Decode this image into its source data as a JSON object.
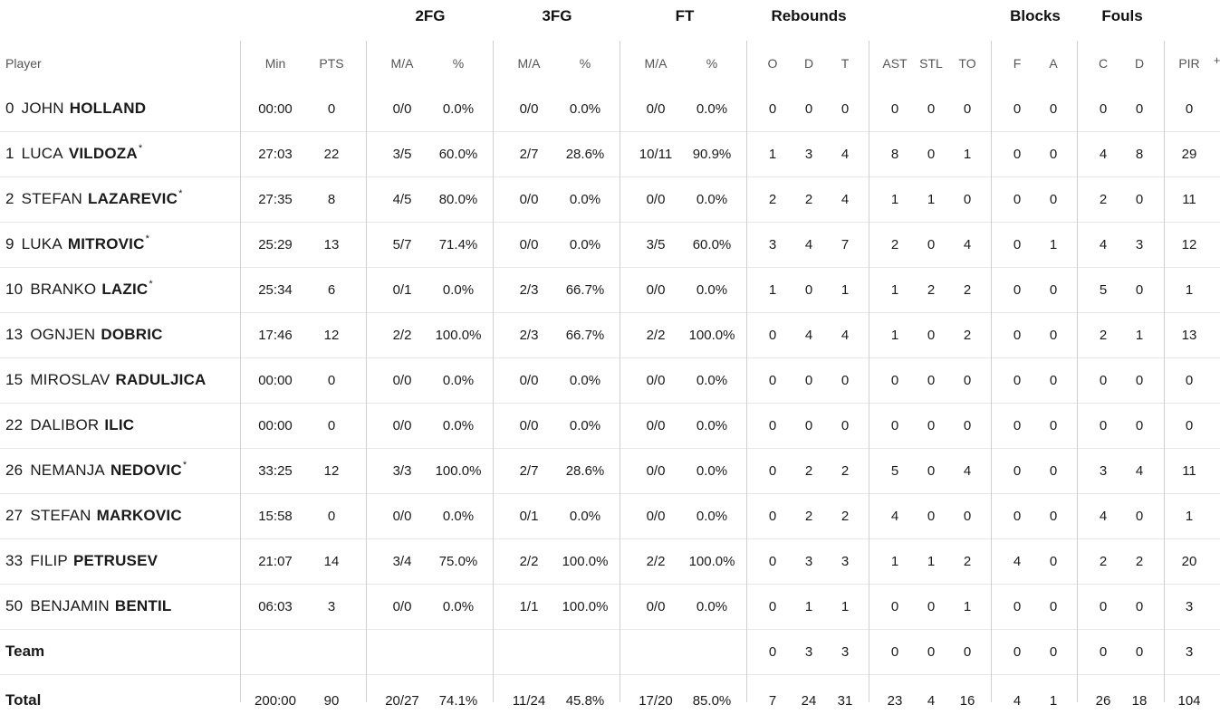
{
  "header": {
    "groups": [
      "2FG",
      "3FG",
      "FT",
      "Rebounds",
      "Blocks",
      "Fouls"
    ],
    "columns": [
      "Player",
      "Min",
      "PTS",
      "M/A",
      "%",
      "M/A",
      "%",
      "M/A",
      "%",
      "O",
      "D",
      "T",
      "AST",
      "STL",
      "TO",
      "F",
      "A",
      "C",
      "D",
      "PIR"
    ],
    "overflow_symbol": "+"
  },
  "players": [
    {
      "number": "0",
      "first": "JOHN",
      "last": "HOLLAND",
      "starter": false,
      "stats": [
        "00:00",
        "0",
        "0/0",
        "0.0%",
        "0/0",
        "0.0%",
        "0/0",
        "0.0%",
        "0",
        "0",
        "0",
        "0",
        "0",
        "0",
        "0",
        "0",
        "0",
        "0",
        "0"
      ]
    },
    {
      "number": "1",
      "first": "LUCA",
      "last": "VILDOZA",
      "starter": true,
      "stats": [
        "27:03",
        "22",
        "3/5",
        "60.0%",
        "2/7",
        "28.6%",
        "10/11",
        "90.9%",
        "1",
        "3",
        "4",
        "8",
        "0",
        "1",
        "0",
        "0",
        "4",
        "8",
        "29"
      ]
    },
    {
      "number": "2",
      "first": "STEFAN",
      "last": "LAZAREVIC",
      "starter": true,
      "stats": [
        "27:35",
        "8",
        "4/5",
        "80.0%",
        "0/0",
        "0.0%",
        "0/0",
        "0.0%",
        "2",
        "2",
        "4",
        "1",
        "1",
        "0",
        "0",
        "0",
        "2",
        "0",
        "11"
      ]
    },
    {
      "number": "9",
      "first": "LUKA",
      "last": "MITROVIC",
      "starter": true,
      "stats": [
        "25:29",
        "13",
        "5/7",
        "71.4%",
        "0/0",
        "0.0%",
        "3/5",
        "60.0%",
        "3",
        "4",
        "7",
        "2",
        "0",
        "4",
        "0",
        "1",
        "4",
        "3",
        "12"
      ]
    },
    {
      "number": "10",
      "first": "BRANKO",
      "last": "LAZIC",
      "starter": true,
      "stats": [
        "25:34",
        "6",
        "0/1",
        "0.0%",
        "2/3",
        "66.7%",
        "0/0",
        "0.0%",
        "1",
        "0",
        "1",
        "1",
        "2",
        "2",
        "0",
        "0",
        "5",
        "0",
        "1"
      ]
    },
    {
      "number": "13",
      "first": "OGNJEN",
      "last": "DOBRIC",
      "starter": false,
      "stats": [
        "17:46",
        "12",
        "2/2",
        "100.0%",
        "2/3",
        "66.7%",
        "2/2",
        "100.0%",
        "0",
        "4",
        "4",
        "1",
        "0",
        "2",
        "0",
        "0",
        "2",
        "1",
        "13"
      ]
    },
    {
      "number": "15",
      "first": "MIROSLAV",
      "last": "RADULJICA",
      "starter": false,
      "stats": [
        "00:00",
        "0",
        "0/0",
        "0.0%",
        "0/0",
        "0.0%",
        "0/0",
        "0.0%",
        "0",
        "0",
        "0",
        "0",
        "0",
        "0",
        "0",
        "0",
        "0",
        "0",
        "0"
      ]
    },
    {
      "number": "22",
      "first": "DALIBOR",
      "last": "ILIC",
      "starter": false,
      "stats": [
        "00:00",
        "0",
        "0/0",
        "0.0%",
        "0/0",
        "0.0%",
        "0/0",
        "0.0%",
        "0",
        "0",
        "0",
        "0",
        "0",
        "0",
        "0",
        "0",
        "0",
        "0",
        "0"
      ]
    },
    {
      "number": "26",
      "first": "NEMANJA",
      "last": "NEDOVIC",
      "starter": true,
      "stats": [
        "33:25",
        "12",
        "3/3",
        "100.0%",
        "2/7",
        "28.6%",
        "0/0",
        "0.0%",
        "0",
        "2",
        "2",
        "5",
        "0",
        "4",
        "0",
        "0",
        "3",
        "4",
        "11"
      ]
    },
    {
      "number": "27",
      "first": "STEFAN",
      "last": "MARKOVIC",
      "starter": false,
      "stats": [
        "15:58",
        "0",
        "0/0",
        "0.0%",
        "0/1",
        "0.0%",
        "0/0",
        "0.0%",
        "0",
        "2",
        "2",
        "4",
        "0",
        "0",
        "0",
        "0",
        "4",
        "0",
        "1"
      ]
    },
    {
      "number": "33",
      "first": "FILIP",
      "last": "PETRUSEV",
      "starter": false,
      "stats": [
        "21:07",
        "14",
        "3/4",
        "75.0%",
        "2/2",
        "100.0%",
        "2/2",
        "100.0%",
        "0",
        "3",
        "3",
        "1",
        "1",
        "2",
        "4",
        "0",
        "2",
        "2",
        "20"
      ]
    },
    {
      "number": "50",
      "first": "BENJAMIN",
      "last": "BENTIL",
      "starter": false,
      "stats": [
        "06:03",
        "3",
        "0/0",
        "0.0%",
        "1/1",
        "100.0%",
        "0/0",
        "0.0%",
        "0",
        "1",
        "1",
        "0",
        "0",
        "1",
        "0",
        "0",
        "0",
        "0",
        "3"
      ]
    }
  ],
  "team": {
    "label": "Team",
    "stats": [
      "",
      "",
      "",
      "",
      "",
      "",
      "",
      "",
      "0",
      "3",
      "3",
      "0",
      "0",
      "0",
      "0",
      "0",
      "0",
      "0",
      "3"
    ]
  },
  "total": {
    "label": "Total",
    "stats": [
      "200:00",
      "90",
      "20/27",
      "74.1%",
      "11/24",
      "45.8%",
      "17/20",
      "85.0%",
      "7",
      "24",
      "31",
      "23",
      "4",
      "16",
      "4",
      "1",
      "26",
      "18",
      "104"
    ]
  },
  "colors": {
    "text": "#1a1a1a",
    "header_sub": "#555555",
    "row_divider": "#e7e7e7",
    "column_divider": "#d0d0d0",
    "background": "#ffffff"
  }
}
